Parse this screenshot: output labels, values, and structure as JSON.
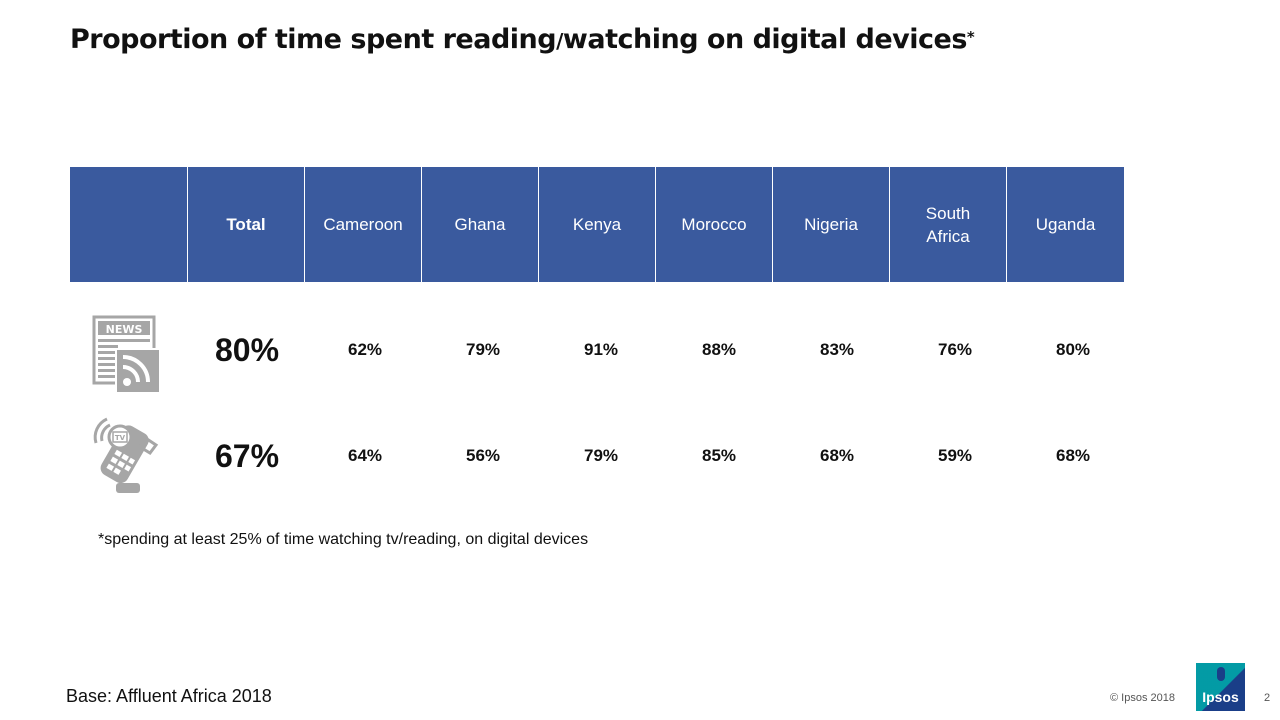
{
  "title": {
    "main": "Proportion of time spent reading",
    "slash": "/",
    "rest": "watching on digital devices",
    "star": "*"
  },
  "table": {
    "headers": [
      "",
      "Total",
      "Cameroon",
      "Ghana",
      "Kenya",
      "Morocco",
      "Nigeria",
      "South Africa",
      "Uganda"
    ],
    "rows": [
      {
        "icon": "news-rss-icon",
        "total": "80%",
        "values": [
          "62%",
          "79%",
          "91%",
          "88%",
          "83%",
          "76%",
          "80%"
        ]
      },
      {
        "icon": "tv-remote-icon",
        "total": "67%",
        "values": [
          "64%",
          "56%",
          "79%",
          "85%",
          "68%",
          "59%",
          "68%"
        ]
      }
    ]
  },
  "footnote": "*spending at least 25% of time watching tv/reading, on digital devices",
  "base": "Base: Affluent Africa 2018",
  "copyright": "© Ipsos 2018",
  "page_number": "2",
  "logo_text": "Ipsos",
  "colors": {
    "header_bg": "#3a5a9e",
    "logo_blue": "#1a3e88",
    "logo_teal": "#00a5a8",
    "icon_gray": "#a6a6a6"
  }
}
